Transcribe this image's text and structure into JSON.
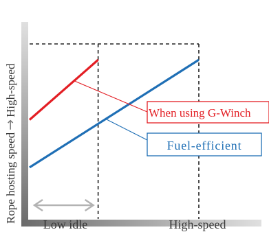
{
  "chart_data": {
    "type": "line",
    "title": "",
    "xlabel": "",
    "ylabel": "Rope hosting speed",
    "y_axis_arrow": "→",
    "y_axis_end_label": "High-speed",
    "x_tick_labels": [
      "Low idle",
      "High-speed"
    ],
    "xlim": [
      0,
      100
    ],
    "ylim": [
      0,
      100
    ],
    "grid": false,
    "colors": {
      "g_winch": "#e31e24",
      "fuel_efficient": "#1f6fb5",
      "axis_gradient_start": "#6a6a6a",
      "axis_gradient_end": "#e0e0e0"
    },
    "series": [
      {
        "name": "When using G-Winch",
        "color": "#e31e24",
        "x": [
          0,
          40.5
        ],
        "y": [
          57,
          91
        ]
      },
      {
        "name": "Fuel-efficient",
        "color": "#1f6fb5",
        "x": [
          0,
          100
        ],
        "y": [
          30,
          91
        ]
      }
    ],
    "annotations": [
      "When using G-Winch",
      "Fuel-efficient"
    ],
    "reference_lines": [
      {
        "type": "vertical",
        "x": 40.5,
        "style": "dashed"
      },
      {
        "type": "vertical",
        "x": 100,
        "style": "dashed"
      },
      {
        "type": "horizontal",
        "y": 100,
        "style": "dashed"
      }
    ],
    "range_arrow": {
      "from": 0,
      "to": 40.5
    }
  }
}
